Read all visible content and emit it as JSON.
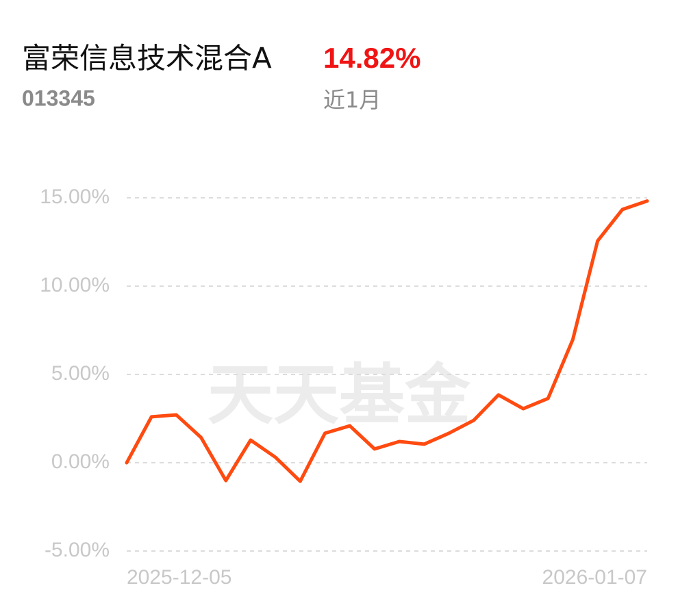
{
  "chart_data": {
    "type": "line",
    "title": "富荣信息技术混合A",
    "headline": "14.82%",
    "code": "013345",
    "period": "近1月",
    "watermark": "天天基金",
    "categories": [
      "2025-12-05",
      null,
      null,
      null,
      null,
      null,
      null,
      null,
      null,
      null,
      null,
      null,
      null,
      null,
      null,
      null,
      null,
      null,
      null,
      null,
      null,
      "2026-01-07"
    ],
    "series": [
      {
        "color": "#ff4a10",
        "values": [
          0,
          2.6,
          2.71,
          1.43,
          -1.01,
          1.28,
          0.31,
          -1.05,
          1.67,
          2.09,
          0.78,
          1.2,
          1.05,
          1.67,
          2.4,
          3.84,
          3.06,
          3.64,
          6.98,
          12.56,
          14.34,
          14.82
        ]
      }
    ],
    "ylim": [
      -5,
      15
    ],
    "yticks": [
      {
        "value": -5,
        "label": "-5.00%"
      },
      {
        "value": 0,
        "label": "0.00%"
      },
      {
        "value": 5,
        "label": "5.00%"
      },
      {
        "value": 10,
        "label": "10.00%"
      },
      {
        "value": 15,
        "label": "15.00%"
      }
    ],
    "grid": true
  }
}
